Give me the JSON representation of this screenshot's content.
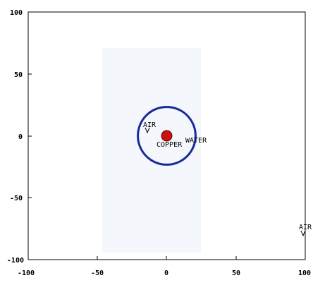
{
  "chart_data": {
    "type": "scatter",
    "xlim": [
      -100,
      100
    ],
    "ylim": [
      -100,
      100
    ],
    "x_ticks": [
      "-100",
      "-50",
      "0",
      "50",
      "100"
    ],
    "y_ticks": [
      "100",
      "50",
      "0",
      "-50",
      "-100"
    ],
    "grid": false,
    "shapes": [
      {
        "kind": "circle",
        "label": "WATER",
        "center": [
          0,
          0
        ],
        "radius": 22,
        "color": "#1a2a9a"
      },
      {
        "kind": "circle",
        "label": "COPPER",
        "center": [
          0,
          0
        ],
        "radius": 4,
        "color": "#cc1111"
      }
    ],
    "labels": {
      "copper": "COPPER",
      "water": "WATER",
      "air_inner": "AIR",
      "air_outer": "AIR"
    },
    "label_points": {
      "copper": [
        0,
        0
      ],
      "water": [
        22,
        2
      ],
      "air_inner": [
        -13,
        13
      ],
      "air_outer": [
        98,
        -62
      ]
    },
    "colors": {
      "water_ring": "#1a2a9a",
      "copper_disk": "#cc1111",
      "domain_background": "#f4f7fc"
    }
  }
}
